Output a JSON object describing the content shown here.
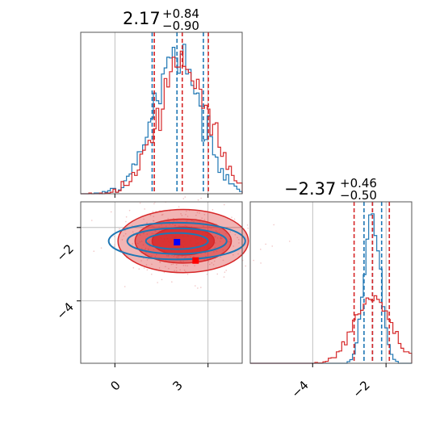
{
  "colors": {
    "series_a": "#1f77b4",
    "series_b": "#d62728",
    "grid": "#b0b0b0",
    "frame": "#000000",
    "marker_a": "#0000ff",
    "marker_b": "#ff0000"
  },
  "chart_data": {
    "type": "corner",
    "parameters": [
      {
        "title": {
          "main": "2.17",
          "upper": "+0.84",
          "lower": "−0.90"
        },
        "range": [
          -1.1,
          4.1
        ],
        "ticks": [
          0,
          3
        ],
        "tick_labels": [
          "0",
          "3"
        ],
        "series": [
          {
            "color": "series_a",
            "center": 2.0,
            "sigma": 0.75,
            "quantiles": [
              1.2,
              2.0,
              2.85
            ]
          },
          {
            "color": "series_b",
            "center": 2.2,
            "sigma": 0.8,
            "quantiles": [
              1.27,
              2.17,
              3.01
            ]
          }
        ]
      },
      {
        "title": {
          "main": "−2.37",
          "upper": "+0.46",
          "lower": "−0.50"
        },
        "range": [
          -5.7,
          -1.3
        ],
        "ticks": [
          -4,
          -2
        ],
        "tick_labels": [
          "−4",
          "−2"
        ],
        "series": [
          {
            "color": "series_a",
            "center": -2.37,
            "sigma": 0.22,
            "quantiles": [
              -2.6,
              -2.37,
              -2.12
            ]
          },
          {
            "color": "series_b",
            "center": -2.37,
            "sigma": 0.48,
            "quantiles": [
              -2.87,
              -2.37,
              -1.91
            ]
          }
        ]
      }
    ],
    "joint": {
      "x_ticks": [
        0,
        3
      ],
      "y_ticks": [
        -2,
        -4
      ],
      "markers": [
        {
          "color": "marker_a",
          "x": 2.0,
          "y": -2.4
        },
        {
          "color": "marker_b",
          "x": 2.6,
          "y": -2.9
        }
      ],
      "contours": {
        "series_b": [
          {
            "rx": 2.1,
            "ry": 0.86
          },
          {
            "rx": 1.55,
            "ry": 0.6
          },
          {
            "rx": 1.0,
            "ry": 0.38
          }
        ],
        "series_a": [
          {
            "rx": 2.2,
            "ry": 0.5
          },
          {
            "rx": 1.6,
            "ry": 0.35
          },
          {
            "rx": 1.0,
            "ry": 0.22
          }
        ]
      }
    },
    "grid": true
  }
}
